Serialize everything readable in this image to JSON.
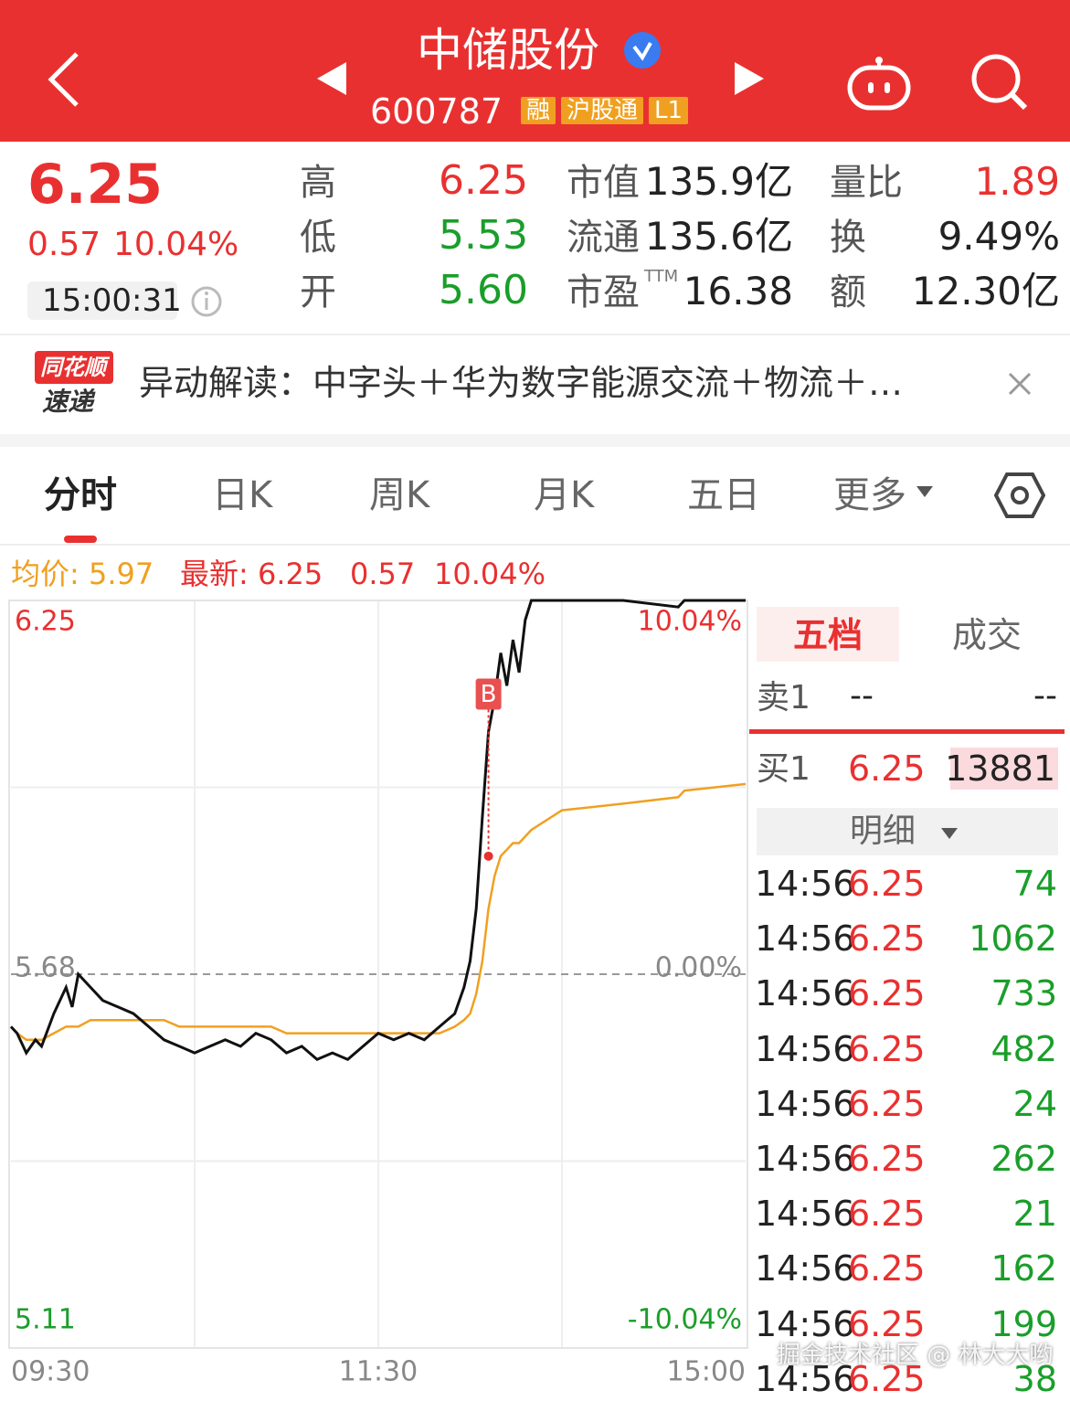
{
  "header": {
    "title": "中储股份",
    "code": "600787",
    "tags": [
      "融",
      "沪股通",
      "L1"
    ]
  },
  "quote": {
    "price": "6.25",
    "change": "0.57",
    "change_pct": "10.04%",
    "time": "15:00:31",
    "col1": [
      {
        "label": "高",
        "value": "6.25"
      },
      {
        "label": "低",
        "value": "5.53"
      },
      {
        "label": "开",
        "value": "5.60"
      }
    ],
    "col2": [
      {
        "label": "市值",
        "value": "135.9亿"
      },
      {
        "label": "流通",
        "value": "135.6亿"
      },
      {
        "label": "市盈",
        "sup": "TTM",
        "value": "16.38"
      }
    ],
    "col3": [
      {
        "label": "量比",
        "value": "1.89"
      },
      {
        "label": "换",
        "value": "9.49%"
      },
      {
        "label": "额",
        "value": "12.30亿"
      }
    ]
  },
  "banner": {
    "logo_top": "同花顺",
    "logo_bottom": "速递",
    "text": "异动解读：中字头＋华为数字能源交流＋物流＋…"
  },
  "tabs": [
    "分时",
    "日K",
    "周K",
    "月K",
    "五日",
    "更多"
  ],
  "summary": {
    "avg_label": "均价: 5.97",
    "latest_label": "最新: 6.25",
    "change": "0.57",
    "change_pct": "10.04%"
  },
  "chart_data": {
    "type": "line",
    "x": [
      0,
      2,
      5,
      8,
      10,
      14,
      18,
      20,
      22,
      26,
      30,
      35,
      40,
      45,
      50,
      55,
      60,
      65,
      70,
      75,
      80,
      85,
      90,
      95,
      100,
      105,
      110,
      115,
      120,
      125,
      130,
      135,
      140,
      145,
      148,
      150,
      152,
      154,
      156,
      158,
      160,
      162,
      164,
      166,
      168,
      170,
      180,
      200,
      218,
      220,
      240
    ],
    "series": [
      {
        "name": "最新",
        "color": "#111111",
        "values": [
          5.6,
          5.59,
          5.56,
          5.58,
          5.57,
          5.62,
          5.66,
          5.63,
          5.68,
          5.66,
          5.64,
          5.63,
          5.62,
          5.6,
          5.58,
          5.57,
          5.56,
          5.57,
          5.58,
          5.57,
          5.59,
          5.58,
          5.56,
          5.57,
          5.55,
          5.56,
          5.55,
          5.57,
          5.59,
          5.58,
          5.59,
          5.58,
          5.6,
          5.62,
          5.66,
          5.7,
          5.78,
          5.92,
          6.05,
          6.1,
          6.17,
          6.12,
          6.19,
          6.14,
          6.22,
          6.25,
          6.25,
          6.25,
          6.24,
          6.25,
          6.25
        ]
      },
      {
        "name": "均价",
        "color": "#f0a020",
        "values": [
          5.6,
          5.59,
          5.58,
          5.58,
          5.58,
          5.59,
          5.6,
          5.6,
          5.6,
          5.61,
          5.61,
          5.61,
          5.61,
          5.61,
          5.61,
          5.6,
          5.6,
          5.6,
          5.6,
          5.6,
          5.6,
          5.6,
          5.59,
          5.59,
          5.59,
          5.59,
          5.59,
          5.59,
          5.59,
          5.59,
          5.59,
          5.59,
          5.59,
          5.6,
          5.61,
          5.62,
          5.65,
          5.7,
          5.78,
          5.83,
          5.86,
          5.87,
          5.88,
          5.88,
          5.89,
          5.9,
          5.93,
          5.94,
          5.95,
          5.96,
          5.97
        ]
      }
    ],
    "ylim": [
      5.11,
      6.25
    ],
    "yticks": [
      6.25,
      5.68,
      5.11
    ],
    "y2lim": [
      -10.04,
      10.04
    ],
    "y2ticks": [
      {
        "value": 10.04,
        "label": "10.04%"
      },
      {
        "value": 0,
        "label": "0.00%"
      },
      {
        "value": -10.04,
        "label": "-10.04%"
      }
    ],
    "xlim": [
      0,
      240
    ],
    "xticks": [
      {
        "value": 0,
        "label": "09:30"
      },
      {
        "value": 120,
        "label": "11:30"
      },
      {
        "value": 240,
        "label": "15:00"
      }
    ],
    "annotations": [
      {
        "text": "B",
        "x": 156,
        "y": 6.05
      }
    ],
    "grid": true
  },
  "order_book": {
    "tabs": [
      "五档",
      "成交"
    ],
    "sell": {
      "label": "卖1",
      "price": "--",
      "volume": "--"
    },
    "buy": {
      "label": "买1",
      "price": "6.25",
      "volume": "13881"
    },
    "detail_label": "明细",
    "trades": [
      {
        "time": "14:56",
        "price": "6.25",
        "volume": "74"
      },
      {
        "time": "14:56",
        "price": "6.25",
        "volume": "1062"
      },
      {
        "time": "14:56",
        "price": "6.25",
        "volume": "733"
      },
      {
        "time": "14:56",
        "price": "6.25",
        "volume": "482"
      },
      {
        "time": "14:56",
        "price": "6.25",
        "volume": "24"
      },
      {
        "time": "14:56",
        "price": "6.25",
        "volume": "262"
      },
      {
        "time": "14:56",
        "price": "6.25",
        "volume": "21"
      },
      {
        "time": "14:56",
        "price": "6.25",
        "volume": "162"
      },
      {
        "time": "14:56",
        "price": "6.25",
        "volume": "199"
      },
      {
        "time": "14:56",
        "price": "6.25",
        "volume": "38"
      }
    ]
  },
  "watermark": "掘金技术社区 @ 林大大哟"
}
